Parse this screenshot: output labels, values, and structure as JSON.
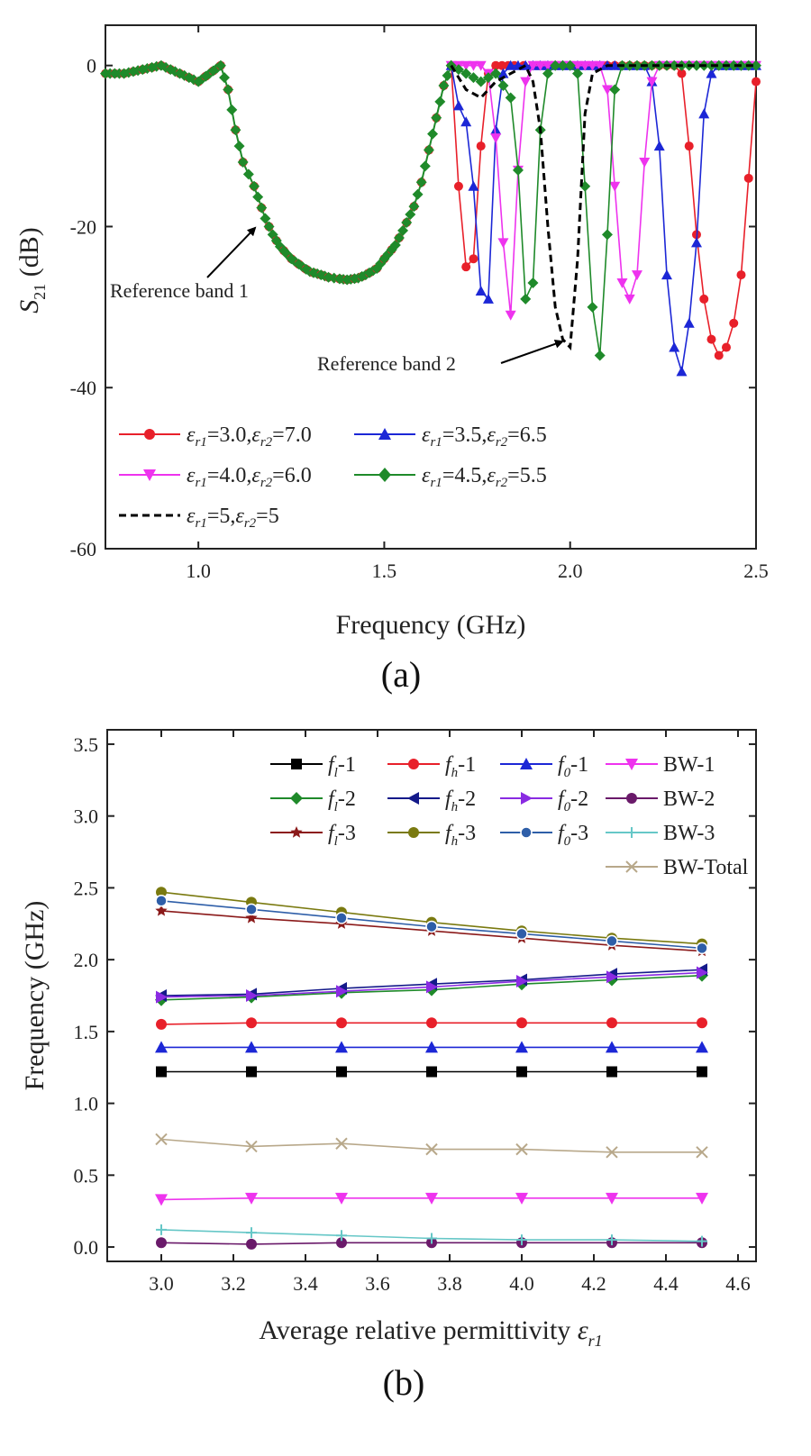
{
  "chart_data": [
    {
      "id": "a",
      "type": "line",
      "panel_label": "(a)",
      "title": "",
      "xlabel": "Frequency (GHz)",
      "ylabel": "S21 (dB)",
      "ylabel_main": "S",
      "ylabel_sub": "21",
      "ylabel_unit": " (dB)",
      "xlim": [
        0.75,
        2.5
      ],
      "ylim": [
        -60,
        5
      ],
      "xticks": [
        1.0,
        1.5,
        2.0,
        2.5
      ],
      "xtick_labels": [
        "1.0",
        "1.5",
        "2.0",
        "2.5"
      ],
      "yticks": [
        0,
        -20,
        -40,
        -60
      ],
      "ytick_labels": [
        "0",
        "-20",
        "-40",
        "-60"
      ],
      "grid": false,
      "legend_position": "lower-left",
      "annotations": [
        {
          "text": "Reference band 1",
          "x": 1.1,
          "y": -30,
          "arrow_to": [
            1.18,
            -21
          ]
        },
        {
          "text": "Reference band 2",
          "x": 1.7,
          "y": -41,
          "arrow_to": [
            2.0,
            -36
          ]
        }
      ],
      "common_curve": {
        "x": [
          0.75,
          0.8,
          0.85,
          0.9,
          0.95,
          1.0,
          1.03,
          1.06,
          1.08,
          1.1,
          1.12,
          1.15,
          1.18,
          1.2,
          1.22,
          1.25,
          1.28,
          1.3,
          1.33,
          1.35,
          1.38,
          1.4,
          1.43,
          1.45,
          1.48,
          1.5,
          1.53,
          1.55,
          1.58,
          1.6,
          1.62,
          1.64,
          1.66,
          1.68
        ],
        "y": [
          -1,
          -1,
          -0.5,
          0,
          -1,
          -2,
          -1,
          0,
          -3,
          -8,
          -12,
          -15,
          -19,
          -21,
          -22.5,
          -24,
          -25,
          -25.6,
          -26,
          -26.3,
          -26.5,
          -26.6,
          -26.4,
          -26,
          -25.2,
          -24,
          -22.3,
          -20.5,
          -17.5,
          -14.5,
          -10.5,
          -6.5,
          -2.5,
          0
        ]
      },
      "series": [
        {
          "name": "εr1=3.0,εr2=7.0",
          "label_parts": [
            "3.0",
            "7.0"
          ],
          "color": "#e8202a",
          "marker": "circle",
          "dashed": false,
          "x": [
            1.68,
            1.7,
            1.72,
            1.74,
            1.76,
            1.78,
            1.8,
            1.85,
            1.9,
            1.95,
            2.0,
            2.1,
            2.2,
            2.28,
            2.3,
            2.32,
            2.34,
            2.36,
            2.38,
            2.4,
            2.42,
            2.44,
            2.46,
            2.48,
            2.5
          ],
          "y": [
            0,
            -15,
            -25,
            -24,
            -10,
            -1,
            0,
            0,
            0,
            0,
            0,
            0,
            0,
            0,
            -1,
            -10,
            -21,
            -29,
            -34,
            -36,
            -35,
            -32,
            -26,
            -14,
            -2
          ]
        },
        {
          "name": "εr1=3.5,εr2=6.5",
          "label_parts": [
            "3.5",
            "6.5"
          ],
          "color": "#1c27d6",
          "marker": "triangle-up",
          "dashed": false,
          "x": [
            1.68,
            1.7,
            1.72,
            1.74,
            1.76,
            1.78,
            1.8,
            1.82,
            1.84,
            1.86,
            1.9,
            2.0,
            2.1,
            2.2,
            2.22,
            2.24,
            2.26,
            2.28,
            2.3,
            2.32,
            2.34,
            2.36,
            2.38,
            2.4,
            2.5
          ],
          "y": [
            0,
            -5,
            -7,
            -15,
            -28,
            -29,
            -8,
            -1,
            0,
            0,
            0,
            0,
            0,
            0,
            -2,
            -10,
            -26,
            -35,
            -38,
            -32,
            -22,
            -6,
            -1,
            0,
            0
          ]
        },
        {
          "name": "εr1=4.0,εr2=6.0",
          "label_parts": [
            "4.0",
            "6.0"
          ],
          "color": "#ee33ee",
          "marker": "triangle-down",
          "dashed": false,
          "x": [
            1.68,
            1.72,
            1.76,
            1.78,
            1.8,
            1.82,
            1.84,
            1.86,
            1.88,
            1.9,
            1.92,
            2.0,
            2.08,
            2.1,
            2.12,
            2.14,
            2.16,
            2.18,
            2.2,
            2.22,
            2.24,
            2.26,
            2.3,
            2.4,
            2.5
          ],
          "y": [
            0,
            0,
            0,
            -1,
            -9,
            -22,
            -31,
            -13,
            -2,
            0,
            0,
            0,
            0,
            -3,
            -15,
            -27,
            -29,
            -26,
            -12,
            -2,
            0,
            0,
            0,
            0,
            0
          ]
        },
        {
          "name": "εr1=4.5,εr2=5.5",
          "label_parts": [
            "4.5",
            "5.5"
          ],
          "color": "#1f8a2a",
          "marker": "diamond",
          "dashed": false,
          "x": [
            1.68,
            1.72,
            1.76,
            1.8,
            1.84,
            1.86,
            1.88,
            1.9,
            1.92,
            1.94,
            1.96,
            1.98,
            2.0,
            2.02,
            2.04,
            2.06,
            2.08,
            2.1,
            2.12,
            2.14,
            2.16,
            2.2,
            2.3,
            2.4,
            2.5
          ],
          "y": [
            0,
            -1,
            -2,
            -1,
            -4,
            -13,
            -29,
            -27,
            -8,
            -1,
            0,
            0,
            0,
            -1,
            -15,
            -30,
            -36,
            -21,
            -3,
            0,
            0,
            0,
            0,
            0,
            0
          ]
        },
        {
          "name": "εr1=5,εr2=5",
          "label_parts": [
            "5",
            "5"
          ],
          "color": "#000000",
          "marker": "none",
          "dashed": true,
          "x": [
            1.68,
            1.72,
            1.76,
            1.8,
            1.84,
            1.88,
            1.9,
            1.92,
            1.94,
            1.96,
            1.98,
            2.0,
            2.02,
            2.04,
            2.06,
            2.1,
            2.2,
            2.3,
            2.4,
            2.5
          ],
          "y": [
            0,
            -3,
            -4,
            -2,
            -1,
            0,
            -2,
            -8,
            -20,
            -30,
            -34,
            -35,
            -24,
            -6,
            -1,
            0,
            0,
            0,
            0,
            0
          ]
        }
      ]
    },
    {
      "id": "b",
      "type": "line",
      "panel_label": "(b)",
      "title": "",
      "xlabel": "Average relative permittivity εr1",
      "xlabel_main": "Average relative permittivity ",
      "xlabel_sym": "ε",
      "xlabel_sub": "r1",
      "ylabel": "Frequency (GHz)",
      "xlim": [
        2.85,
        4.65
      ],
      "ylim": [
        -0.1,
        3.6
      ],
      "xticks": [
        3.0,
        3.2,
        3.4,
        3.6,
        3.8,
        4.0,
        4.2,
        4.4,
        4.6
      ],
      "xtick_labels": [
        "3.0",
        "3.2",
        "3.4",
        "3.6",
        "3.8",
        "4.0",
        "4.2",
        "4.4",
        "4.6"
      ],
      "yticks": [
        0.0,
        0.5,
        1.0,
        1.5,
        2.0,
        2.5,
        3.0,
        3.5
      ],
      "ytick_labels": [
        "0.0",
        "0.5",
        "1.0",
        "1.5",
        "2.0",
        "2.5",
        "3.0",
        "3.5"
      ],
      "grid": false,
      "legend_position": "top-right",
      "x": [
        3.0,
        3.25,
        3.5,
        3.75,
        4.0,
        4.25,
        4.5
      ],
      "series": [
        {
          "name": "fl-1",
          "label_main": "f",
          "label_sub": "l",
          "label_suffix": "-1",
          "color": "#000000",
          "marker": "square",
          "values": [
            1.22,
            1.22,
            1.22,
            1.22,
            1.22,
            1.22,
            1.22
          ]
        },
        {
          "name": "fh-1",
          "label_main": "f",
          "label_sub": "h",
          "label_suffix": "-1",
          "color": "#e8202a",
          "marker": "circle",
          "values": [
            1.55,
            1.56,
            1.56,
            1.56,
            1.56,
            1.56,
            1.56
          ]
        },
        {
          "name": "f0-1",
          "label_main": "f",
          "label_sub": "0",
          "label_suffix": "-1",
          "color": "#1c27d6",
          "marker": "triangle-up",
          "values": [
            1.39,
            1.39,
            1.39,
            1.39,
            1.39,
            1.39,
            1.39
          ]
        },
        {
          "name": "BW-1",
          "label_main": "BW-1",
          "label_sub": "",
          "label_suffix": "",
          "color": "#ee33ee",
          "marker": "triangle-down",
          "values": [
            0.33,
            0.34,
            0.34,
            0.34,
            0.34,
            0.34,
            0.34
          ]
        },
        {
          "name": "fl-2",
          "label_main": "f",
          "label_sub": "l",
          "label_suffix": "-2",
          "color": "#1f8a2a",
          "marker": "diamond",
          "values": [
            1.72,
            1.74,
            1.77,
            1.79,
            1.83,
            1.86,
            1.89
          ]
        },
        {
          "name": "fh-2",
          "label_main": "f",
          "label_sub": "h",
          "label_suffix": "-2",
          "color": "#141a8a",
          "marker": "triangle-left",
          "values": [
            1.75,
            1.76,
            1.8,
            1.83,
            1.86,
            1.9,
            1.93
          ]
        },
        {
          "name": "f0-2",
          "label_main": "f",
          "label_sub": "0",
          "label_suffix": "-2",
          "color": "#8a2be2",
          "marker": "triangle-right",
          "values": [
            1.74,
            1.75,
            1.78,
            1.81,
            1.85,
            1.88,
            1.91
          ]
        },
        {
          "name": "BW-2",
          "label_main": "BW-2",
          "label_sub": "",
          "label_suffix": "",
          "color": "#6a1a6a",
          "marker": "circle",
          "values": [
            0.03,
            0.02,
            0.03,
            0.03,
            0.03,
            0.03,
            0.03
          ]
        },
        {
          "name": "fl-3",
          "label_main": "f",
          "label_sub": "l",
          "label_suffix": "-3",
          "color": "#8b1a1a",
          "marker": "star",
          "values": [
            2.34,
            2.29,
            2.25,
            2.2,
            2.15,
            2.1,
            2.06
          ]
        },
        {
          "name": "fh-3",
          "label_main": "f",
          "label_sub": "h",
          "label_suffix": "-3",
          "color": "#7a7a10",
          "marker": "circle",
          "values": [
            2.47,
            2.4,
            2.33,
            2.26,
            2.2,
            2.15,
            2.11
          ]
        },
        {
          "name": "f0-3",
          "label_main": "f",
          "label_sub": "0",
          "label_suffix": "-3",
          "color": "#2e5ea8",
          "marker": "circle-open",
          "values": [
            2.41,
            2.35,
            2.29,
            2.23,
            2.18,
            2.13,
            2.08
          ]
        },
        {
          "name": "BW-3",
          "label_main": "BW-3",
          "label_sub": "",
          "label_suffix": "",
          "color": "#66c7c7",
          "marker": "plus",
          "values": [
            0.12,
            0.1,
            0.08,
            0.06,
            0.05,
            0.05,
            0.04
          ]
        },
        {
          "name": "BW-Total",
          "label_main": "BW-Total",
          "label_sub": "",
          "label_suffix": "",
          "color": "#b8a88a",
          "marker": "x",
          "values": [
            0.75,
            0.7,
            0.72,
            0.68,
            0.68,
            0.66,
            0.66
          ]
        }
      ]
    }
  ]
}
